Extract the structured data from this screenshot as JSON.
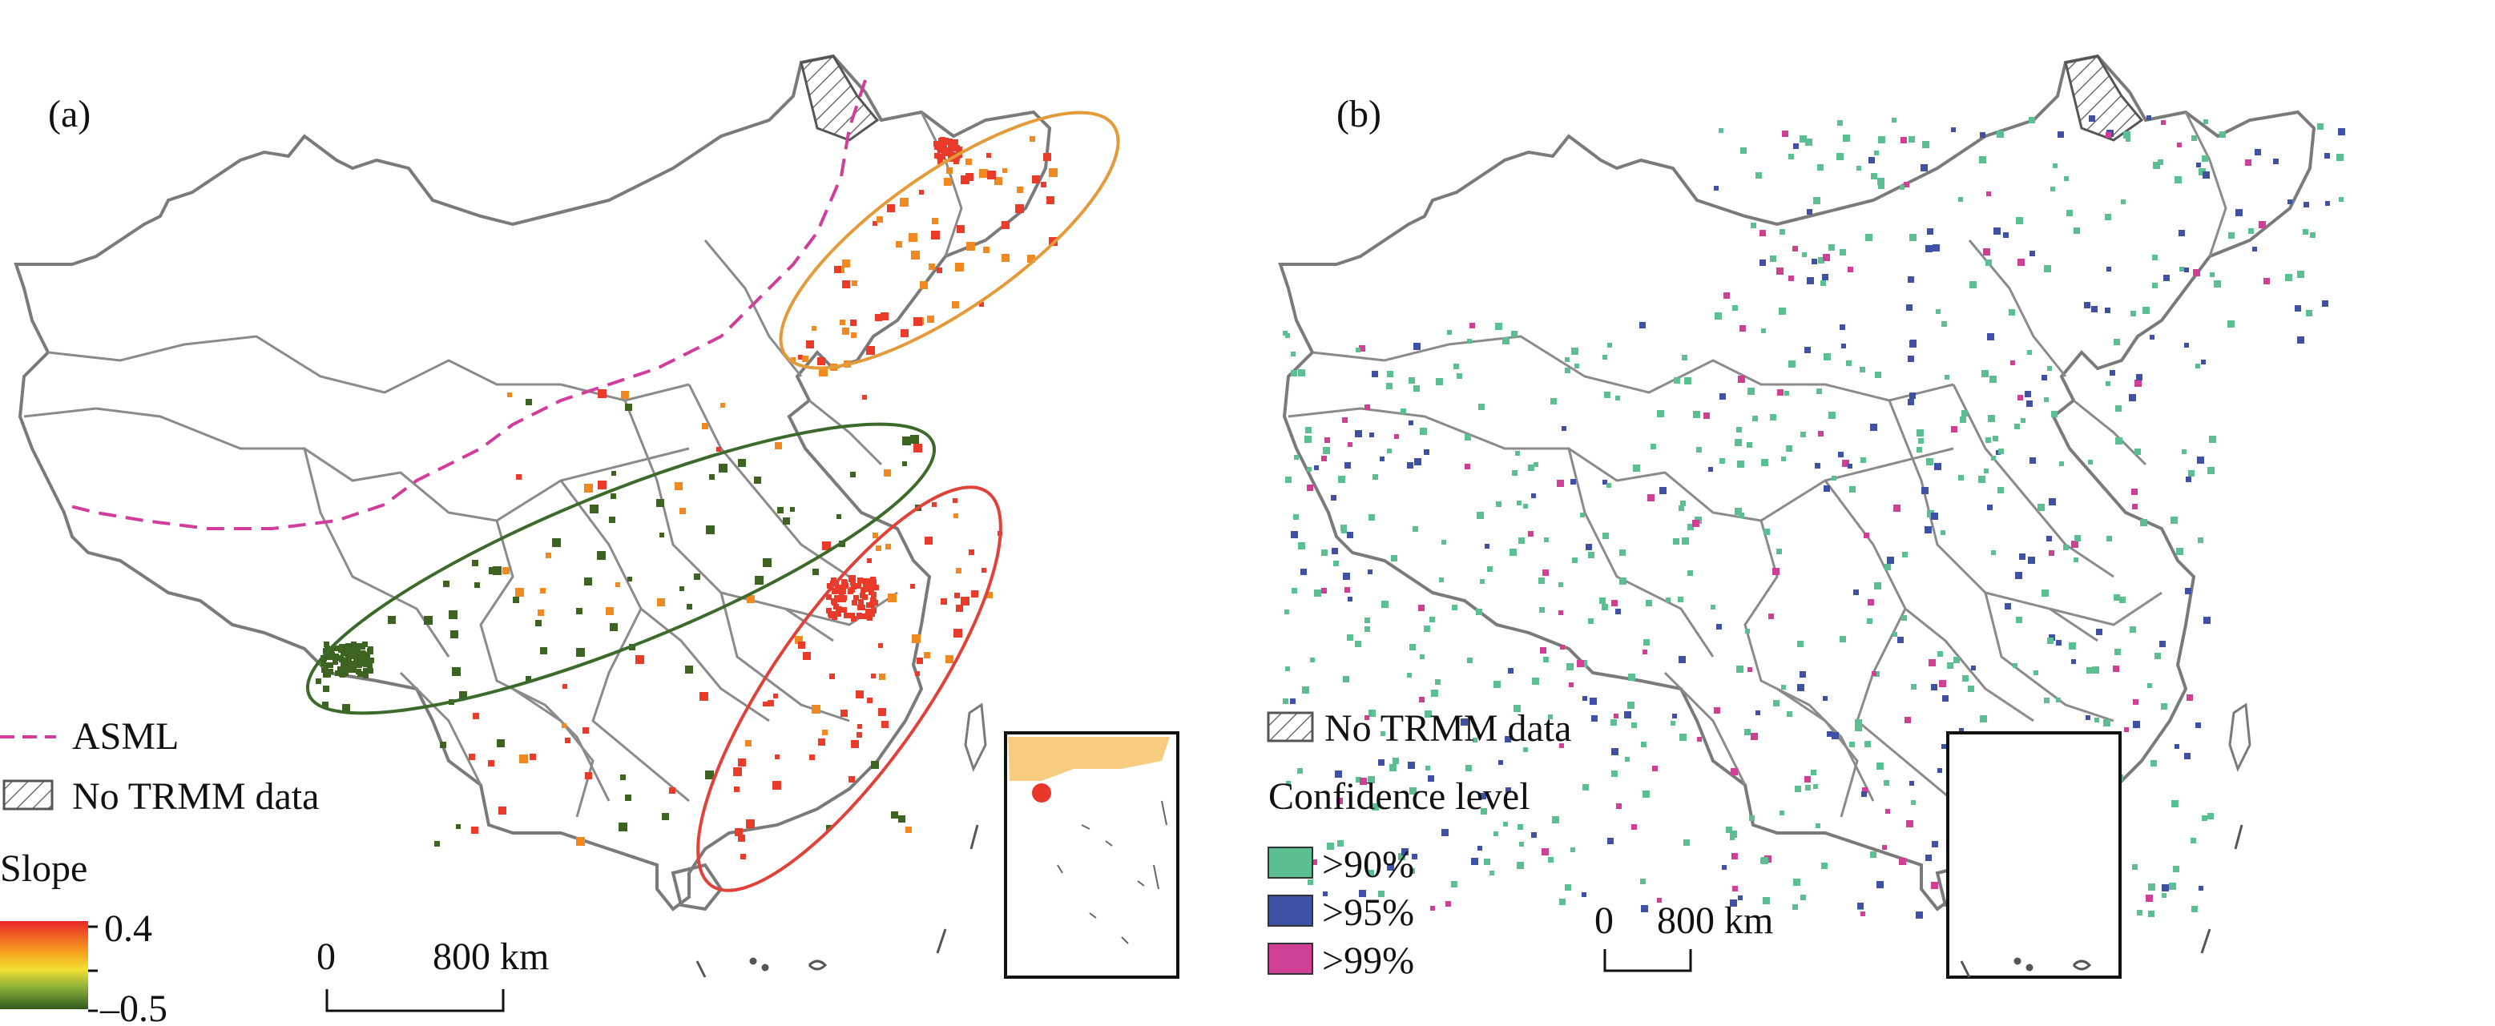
{
  "panels": [
    {
      "id": "a",
      "label": "(a)",
      "legend": {
        "asml_label": "ASML",
        "no_data_label": "No TRMM data",
        "slope_title": "Slope",
        "slope_max": "0.4",
        "slope_min": "–0.5"
      },
      "scale": {
        "start": "0",
        "end": "800 km"
      },
      "colors": {
        "asml": "#d23c9c",
        "increase": "#ea3a2a",
        "mid": "#f08a20",
        "decrease": "#3c6420",
        "boundary": "#7a7a7a"
      },
      "ellipse_colors": {
        "northeast": "#e59a3a",
        "central": "#3b6a2a",
        "southeast": "#e0423a"
      }
    },
    {
      "id": "b",
      "label": "(b)",
      "legend": {
        "no_data_label": "No TRMM data",
        "confidence_title": "Confidence level",
        "levels": [
          {
            "label": ">90%",
            "color": "#5bbf92"
          },
          {
            "label": ">95%",
            "color": "#3f51a4"
          },
          {
            "label": ">99%",
            "color": "#cf3f96"
          }
        ]
      },
      "scale": {
        "start": "0",
        "end": "800 km"
      }
    }
  ]
}
